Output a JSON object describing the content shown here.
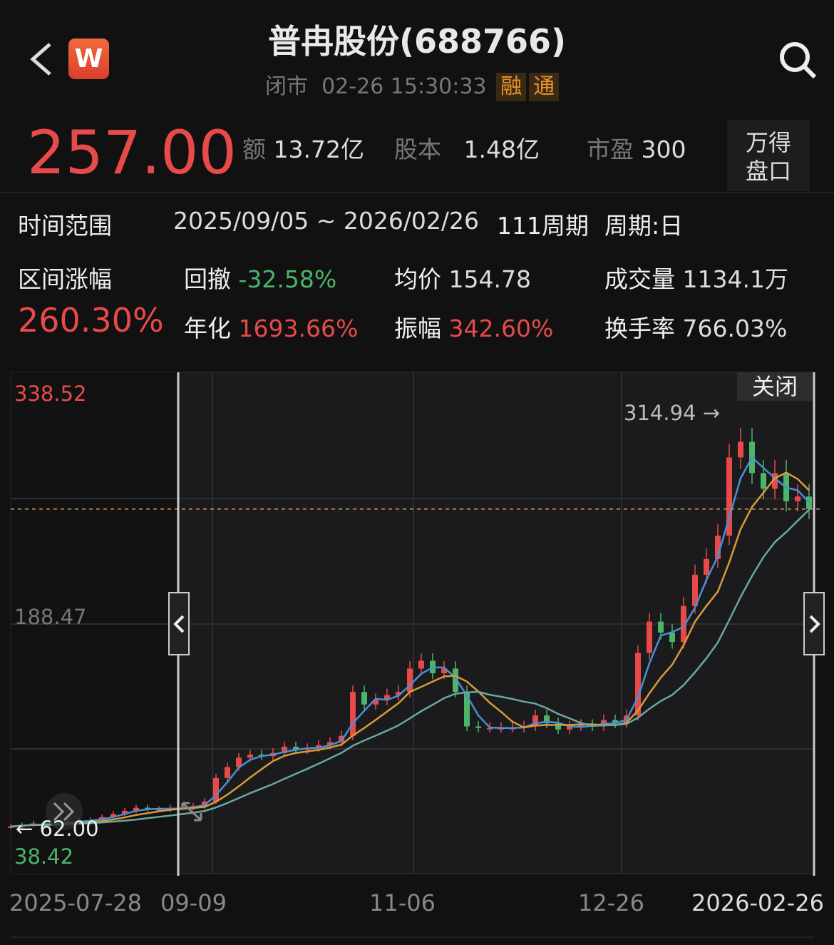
{
  "header": {
    "title": "普冉股份(688766)",
    "status": "闭市",
    "datetime": "02-26 15:30:33",
    "tags": [
      "融",
      "通"
    ],
    "logo": "W",
    "icons": [
      "back-chevron-icon",
      "search-icon"
    ]
  },
  "quote": {
    "price": "257.00",
    "amount_label": "额",
    "amount": "13.72亿",
    "shares_label": "股本",
    "shares": "1.48亿",
    "pe_label": "市盈",
    "pe": "300",
    "panel_button": "万得盘口"
  },
  "range": {
    "time_label": "时间范围",
    "time_value": "2025/09/05 ~ 2026/02/26",
    "periods": "111周期",
    "cycle": "周期:日",
    "change_label": "区间涨幅",
    "change": "260.30%",
    "drawdown_label": "回撤",
    "drawdown": "-32.58%",
    "annual_label": "年化",
    "annual": "1693.66%",
    "avg_label": "均价",
    "avg": "154.78",
    "amp_label": "振幅",
    "amp": "342.60%",
    "vol_label": "成交量",
    "vol": "1134.1万",
    "turnover_label": "换手率",
    "turnover": "766.03%"
  },
  "colors": {
    "up": "#e84a4a",
    "down": "#4cb56a",
    "ma1": "#4a8fd6",
    "ma2": "#d89a3a",
    "ma3": "#6aa8a0"
  },
  "chart_data": {
    "type": "candlestick",
    "close_button": "关闭",
    "y_labels": {
      "max": "338.52",
      "mid": "188.47",
      "min": "38.42"
    },
    "ylim": [
      38.42,
      338.52
    ],
    "last_price": 257.0,
    "annotations": {
      "high": "314.94 →",
      "low": "← 62.00"
    },
    "x_ticks": [
      "2025-07-28",
      "09-09",
      "11-06",
      "12-26",
      "2026-02-26"
    ],
    "closes": [
      54,
      55,
      56,
      55,
      56,
      57,
      58,
      58,
      60,
      62,
      64,
      66,
      65,
      65,
      66,
      66,
      67,
      70,
      85,
      92,
      98,
      100,
      99,
      101,
      105,
      103,
      104,
      106,
      108,
      112,
      140,
      132,
      135,
      138,
      140,
      155,
      160,
      152,
      155,
      140,
      118,
      117,
      117,
      117,
      117,
      118,
      125,
      120,
      116,
      118,
      119,
      118,
      122,
      120,
      125,
      165,
      185,
      178,
      172,
      195,
      215,
      225,
      240,
      290,
      300,
      280,
      270,
      280,
      262,
      265,
      257
    ]
  }
}
